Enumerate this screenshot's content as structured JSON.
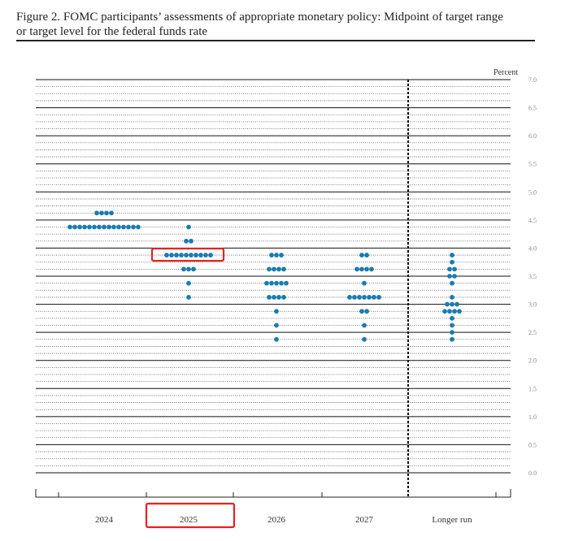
{
  "figure": {
    "title_line1": "Figure 2.  FOMC participants’ assessments of appropriate monetary policy:  Midpoint of target range",
    "title_line2": "or target level for the federal funds rate"
  },
  "colors": {
    "dot": "#1a7bb1",
    "highlight": "#e8211f",
    "grid_major": "#111111",
    "grid_minor": "#555555"
  },
  "chart_data": {
    "type": "scatter",
    "subtype": "dot-plot",
    "unit_label": "Percent",
    "ylim": [
      0.0,
      7.0
    ],
    "y_ticks": [
      "0.0",
      "0.5",
      "1.0",
      "1.5",
      "2.0",
      "2.5",
      "3.0",
      "3.5",
      "4.0",
      "4.5",
      "5.0",
      "5.5",
      "6.0",
      "6.5",
      "7.0"
    ],
    "grid": "major lines at each whole and half percent, dotted lines at each eighth",
    "categories": [
      "2024",
      "2025",
      "2026",
      "2027",
      "Longer run"
    ],
    "separator_before": "Longer run",
    "highlighted_categories": [
      "2025"
    ],
    "series": [
      {
        "category": "2024",
        "points": [
          {
            "y": 4.625,
            "count": 4
          },
          {
            "y": 4.375,
            "count": 15
          }
        ]
      },
      {
        "category": "2025",
        "points": [
          {
            "y": 4.375,
            "count": 1
          },
          {
            "y": 4.125,
            "count": 2
          },
          {
            "y": 3.875,
            "count": 10
          },
          {
            "y": 3.625,
            "count": 3
          },
          {
            "y": 3.375,
            "count": 1
          },
          {
            "y": 3.125,
            "count": 1
          }
        ],
        "highlighted_value": 3.875
      },
      {
        "category": "2026",
        "points": [
          {
            "y": 3.875,
            "count": 3
          },
          {
            "y": 3.625,
            "count": 4
          },
          {
            "y": 3.375,
            "count": 5
          },
          {
            "y": 3.125,
            "count": 4
          },
          {
            "y": 2.875,
            "count": 1
          },
          {
            "y": 2.625,
            "count": 1
          },
          {
            "y": 2.375,
            "count": 1
          }
        ]
      },
      {
        "category": "2027",
        "points": [
          {
            "y": 3.875,
            "count": 2
          },
          {
            "y": 3.625,
            "count": 4
          },
          {
            "y": 3.375,
            "count": 1
          },
          {
            "y": 3.125,
            "count": 7
          },
          {
            "y": 2.875,
            "count": 2
          },
          {
            "y": 2.625,
            "count": 1
          },
          {
            "y": 2.375,
            "count": 1
          }
        ]
      },
      {
        "category": "Longer run",
        "points": [
          {
            "y": 3.875,
            "count": 1
          },
          {
            "y": 3.75,
            "count": 1
          },
          {
            "y": 3.625,
            "count": 2
          },
          {
            "y": 3.5,
            "count": 2
          },
          {
            "y": 3.375,
            "count": 1
          },
          {
            "y": 3.125,
            "count": 1
          },
          {
            "y": 3.0,
            "count": 3
          },
          {
            "y": 2.875,
            "count": 4
          },
          {
            "y": 2.75,
            "count": 1
          },
          {
            "y": 2.625,
            "count": 1
          },
          {
            "y": 2.5,
            "count": 1
          },
          {
            "y": 2.375,
            "count": 1
          }
        ]
      }
    ]
  }
}
